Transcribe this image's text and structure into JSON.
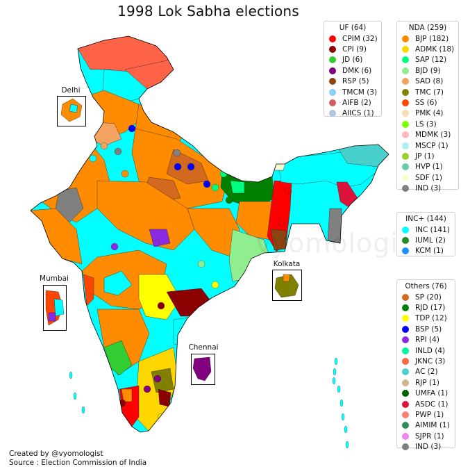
{
  "title": "1998 Lok Sabha elections",
  "watermark": "vyomologist",
  "credits": {
    "created_by": "Created by @vyomologist",
    "source": "Source : Election Commission of India"
  },
  "insets": {
    "delhi": "Delhi",
    "mumbai": "Mumbai",
    "kolkata": "Kolkata",
    "chennai": "Chennai"
  },
  "legends": {
    "uf": {
      "title": "UF (64)",
      "items": [
        {
          "label": "CPIM (32)",
          "color": "#ff0000"
        },
        {
          "label": "CPI (9)",
          "color": "#8b0000"
        },
        {
          "label": "JD (6)",
          "color": "#32cd32"
        },
        {
          "label": "DMK (6)",
          "color": "#800080"
        },
        {
          "label": "RSP (5)",
          "color": "#8b4513"
        },
        {
          "label": "TMCM (3)",
          "color": "#87cefa"
        },
        {
          "label": "AIFB (2)",
          "color": "#cd5c5c"
        },
        {
          "label": "AIICS (1)",
          "color": "#b0c4de"
        }
      ]
    },
    "nda": {
      "title": "NDA (259)",
      "items": [
        {
          "label": "BJP (182)",
          "color": "#ff8c00"
        },
        {
          "label": "ADMK (18)",
          "color": "#ffd700"
        },
        {
          "label": "SAP (12)",
          "color": "#00ff7f"
        },
        {
          "label": "BJD (9)",
          "color": "#90ee90"
        },
        {
          "label": "SAD (8)",
          "color": "#f4a460"
        },
        {
          "label": "TMC (7)",
          "color": "#808000"
        },
        {
          "label": "SS (6)",
          "color": "#ff4500"
        },
        {
          "label": "PMK (4)",
          "color": "#f5deb3"
        },
        {
          "label": "LS (3)",
          "color": "#7cfc00"
        },
        {
          "label": "MDMK (3)",
          "color": "#ffb6c1"
        },
        {
          "label": "MSCP (1)",
          "color": "#afeeee"
        },
        {
          "label": "JP (1)",
          "color": "#9acd32"
        },
        {
          "label": "HVP (1)",
          "color": "#66cdaa"
        },
        {
          "label": "SDF (1)",
          "color": "#fafad2"
        },
        {
          "label": "IND (3)",
          "color": "#808080"
        }
      ]
    },
    "inc": {
      "title": "INC+ (144)",
      "items": [
        {
          "label": "INC (141)",
          "color": "#00ffff"
        },
        {
          "label": "IUML (2)",
          "color": "#228b22"
        },
        {
          "label": "KCM (1)",
          "color": "#1e90ff"
        }
      ]
    },
    "others": {
      "title": "Others (76)",
      "items": [
        {
          "label": "SP (20)",
          "color": "#d2691e"
        },
        {
          "label": "RJD (17)",
          "color": "#008000"
        },
        {
          "label": "TDP (12)",
          "color": "#ffff00"
        },
        {
          "label": "BSP (5)",
          "color": "#0000ff"
        },
        {
          "label": "RPI (4)",
          "color": "#8a2be2"
        },
        {
          "label": "INLD (4)",
          "color": "#00fa9a"
        },
        {
          "label": "JKNC (3)",
          "color": "#ff6347"
        },
        {
          "label": "AC (2)",
          "color": "#48d1cc"
        },
        {
          "label": "RJP (1)",
          "color": "#d2b48c"
        },
        {
          "label": "UMFA (1)",
          "color": "#006400"
        },
        {
          "label": "ASDC (1)",
          "color": "#dc143c"
        },
        {
          "label": "PWP (1)",
          "color": "#fa8072"
        },
        {
          "label": "AIMIM (1)",
          "color": "#2e8b57"
        },
        {
          "label": "SJPR (1)",
          "color": "#ee82ee"
        },
        {
          "label": "IND (3)",
          "color": "#808080"
        }
      ]
    }
  },
  "palette": {
    "inc": "#00ffff",
    "bjp": "#ff8c00",
    "jknc": "#ff6347",
    "ac": "#48d1cc",
    "cpim": "#ff0000",
    "rjd": "#008000",
    "tdp": "#ffff00",
    "admk": "#ffd700",
    "dmk": "#800080",
    "bjd": "#90ee90",
    "sp": "#d2691e",
    "sad": "#f4a460",
    "ss": "#ff4500",
    "tmc": "#808000",
    "ind": "#808080",
    "rpi": "#8a2be2",
    "bsp": "#0000ff",
    "cpi": "#8b0000",
    "rsp": "#8b4513",
    "asdc": "#dc143c",
    "sdf": "#fafad2",
    "sap": "#00ff7f",
    "jd": "#32cd32"
  }
}
